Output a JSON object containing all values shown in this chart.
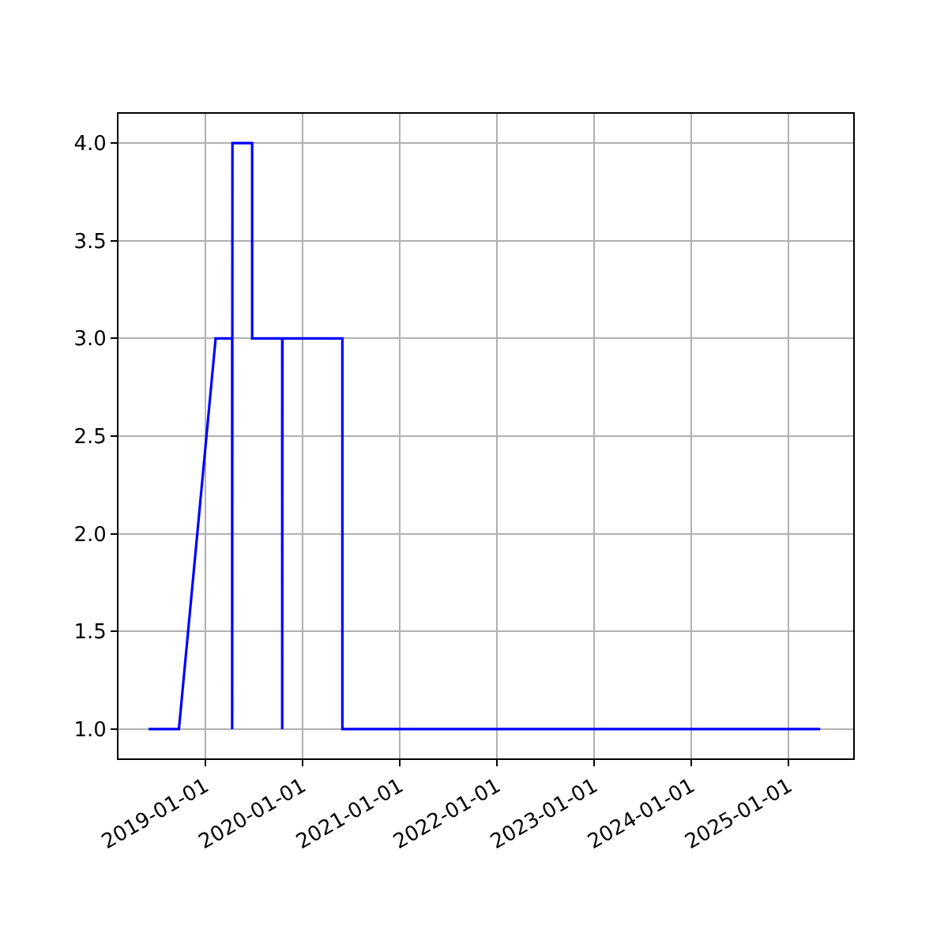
{
  "chart_data": {
    "type": "line",
    "x": [
      "2018-06-03",
      "2018-09-25",
      "2019-02-10",
      "2019-04-13",
      "2019-04-13",
      "2019-04-14",
      "2019-06-27",
      "2019-06-27",
      "2019-10-18",
      "2019-10-18",
      "2019-10-19",
      "2020-05-31",
      "2020-05-31",
      "2025-04-30"
    ],
    "series": [
      {
        "color": "#0000ff",
        "values": [
          1,
          1,
          3,
          3,
          1,
          4,
          4,
          3,
          3,
          1,
          3,
          3,
          1,
          1
        ]
      }
    ],
    "xlim": [
      "2018-02-10",
      "2025-09-01"
    ],
    "xticks": [
      "2019-01-01",
      "2020-01-01",
      "2021-01-01",
      "2022-01-01",
      "2023-01-01",
      "2024-01-01",
      "2025-01-01"
    ],
    "ylim": [
      0.85,
      4.15
    ],
    "yticks": [
      {
        "value": 1,
        "label": "1.0"
      },
      {
        "value": 1.5,
        "label": "1.5"
      },
      {
        "value": 2,
        "label": "2.0"
      },
      {
        "value": 2.5,
        "label": "2.5"
      },
      {
        "value": 3,
        "label": "3.0"
      },
      {
        "value": 3.5,
        "label": "3.5"
      },
      {
        "value": 4,
        "label": "4.0"
      }
    ],
    "grid": true,
    "legend": false,
    "marker": "none",
    "line_style": "solid"
  }
}
